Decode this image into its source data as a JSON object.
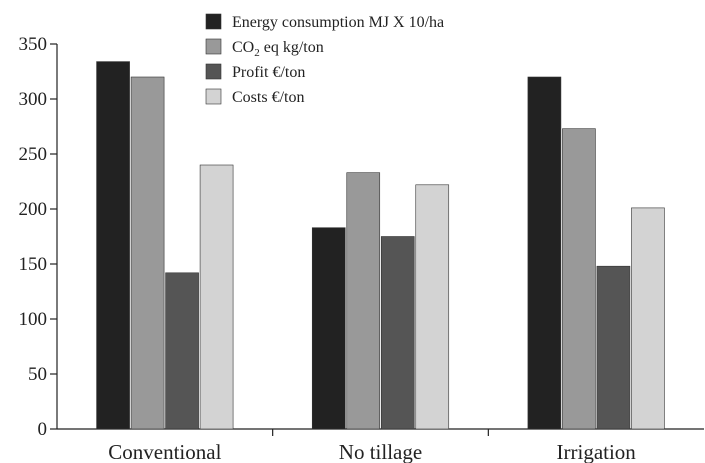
{
  "chart_data": {
    "type": "bar",
    "categories": [
      "Conventional",
      "No tillage",
      "Irrigation"
    ],
    "series": [
      {
        "name": "Energy consumption MJ X 10/ha",
        "values": [
          334,
          183,
          320
        ],
        "color": "#222222"
      },
      {
        "name_parts": [
          "CO",
          "2",
          " eq kg/ton"
        ],
        "values": [
          320,
          233,
          273
        ],
        "color": "#999999"
      },
      {
        "name": "Profit €/ton",
        "values": [
          142,
          175,
          148
        ],
        "color": "#555555"
      },
      {
        "name": "Costs €/ton",
        "values": [
          240,
          222,
          201
        ],
        "color": "#d3d3d3"
      }
    ],
    "ylim": [
      0,
      350
    ],
    "yticks": [
      0,
      50,
      100,
      150,
      200,
      250,
      300,
      350
    ],
    "legend_position": "top-center",
    "grid": false
  }
}
